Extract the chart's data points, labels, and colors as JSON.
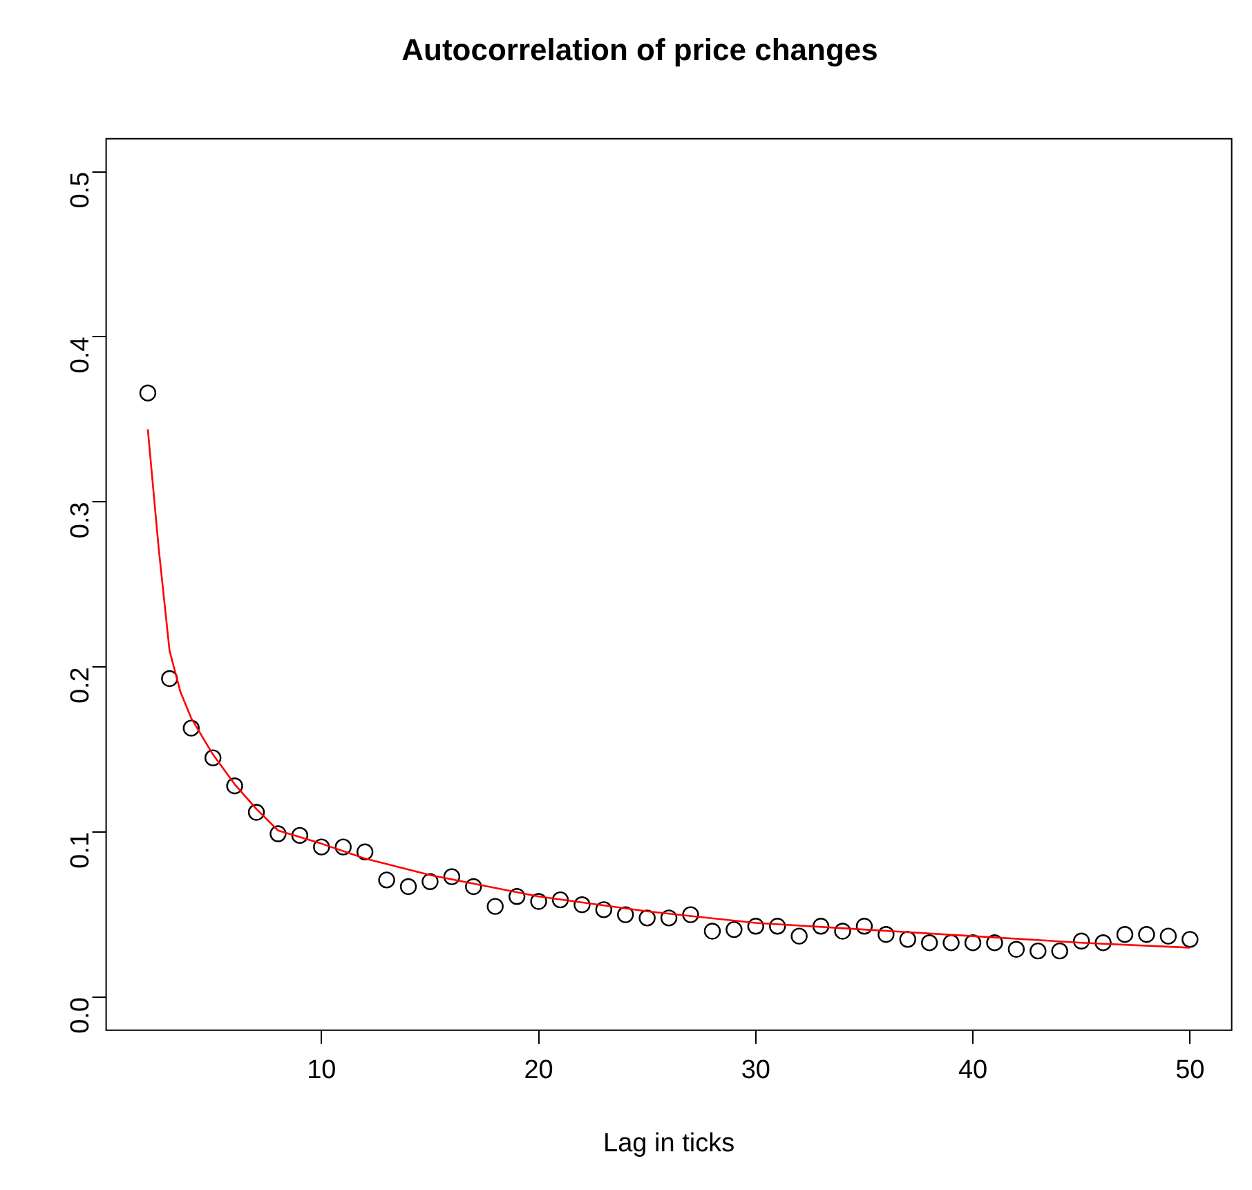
{
  "chart_data": {
    "type": "scatter",
    "title": "Autocorrelation of price changes",
    "xlabel": "Lag in ticks",
    "xlim": [
      0.08,
      51.92
    ],
    "ylim": [
      -0.02,
      0.52
    ],
    "xticks": [
      10,
      20,
      30,
      40,
      50
    ],
    "yticks": [
      {
        "value": 0,
        "label": "0.0"
      },
      {
        "value": 0.1,
        "label": "0.1"
      },
      {
        "value": 0.2,
        "label": "0.2"
      },
      {
        "value": 0.3,
        "label": "0.3"
      },
      {
        "value": 0.4,
        "label": "0.4"
      },
      {
        "value": 0.5,
        "label": "0.5"
      }
    ],
    "grid": false,
    "legend": false,
    "marker": "circle",
    "series": [
      {
        "color": "#000000",
        "x": [
          2,
          3,
          4,
          5,
          6,
          7,
          8,
          9,
          10,
          11,
          12,
          13,
          14,
          15,
          16,
          17,
          18,
          19,
          20,
          21,
          22,
          23,
          24,
          25,
          26,
          27,
          28,
          29,
          30,
          31,
          32,
          33,
          34,
          35,
          36,
          37,
          38,
          39,
          40,
          41,
          42,
          43,
          44,
          45,
          46,
          47,
          48,
          49,
          50
        ],
        "values": [
          0.366,
          0.193,
          0.163,
          0.145,
          0.128,
          0.112,
          0.099,
          0.098,
          0.091,
          0.091,
          0.088,
          0.071,
          0.067,
          0.07,
          0.073,
          0.067,
          0.055,
          0.061,
          0.058,
          0.059,
          0.056,
          0.053,
          0.05,
          0.048,
          0.048,
          0.05,
          0.04,
          0.041,
          0.043,
          0.043,
          0.037,
          0.043,
          0.04,
          0.043,
          0.038,
          0.035,
          0.033,
          0.033,
          0.033,
          0.033,
          0.029,
          0.028,
          0.028,
          0.034,
          0.033,
          0.038,
          0.038,
          0.037,
          0.035
        ]
      },
      {
        "type": "line",
        "color": "#ff0000",
        "marker": "none",
        "x": [
          2,
          2.5,
          3,
          3.5,
          4,
          5,
          6,
          7,
          8,
          10,
          12,
          15,
          20,
          25,
          30,
          35,
          40,
          45,
          50
        ],
        "values": [
          0.344,
          0.272,
          0.21,
          0.185,
          0.169,
          0.147,
          0.129,
          0.114,
          0.101,
          0.093,
          0.084,
          0.074,
          0.061,
          0.052,
          0.045,
          0.041,
          0.037,
          0.033,
          0.03
        ]
      }
    ]
  }
}
